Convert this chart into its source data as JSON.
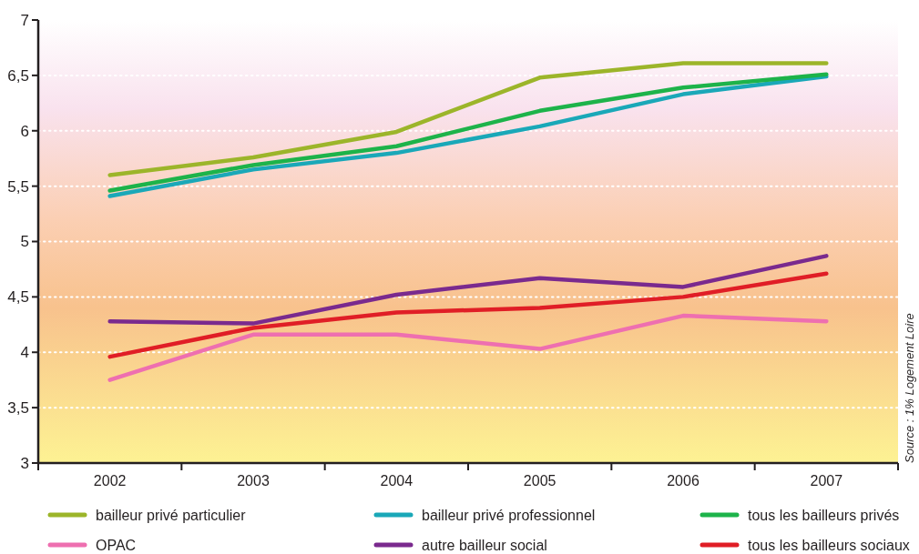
{
  "chart_data": {
    "type": "line",
    "categories": [
      "2002",
      "2003",
      "2004",
      "2005",
      "2006",
      "2007"
    ],
    "series": [
      {
        "name": "bailleur privé particulier",
        "color": "#9cb52a",
        "values": [
          5.6,
          5.76,
          5.99,
          6.48,
          6.61,
          6.61
        ]
      },
      {
        "name": "bailleur privé professionnel",
        "color": "#1aa8b8",
        "values": [
          5.41,
          5.65,
          5.8,
          6.04,
          6.33,
          6.49
        ]
      },
      {
        "name": "tous les bailleurs privés",
        "color": "#1db34a",
        "values": [
          5.46,
          5.69,
          5.86,
          6.18,
          6.39,
          6.51
        ]
      },
      {
        "name": "OPAC",
        "color": "#ee6fb0",
        "values": [
          3.75,
          4.16,
          4.16,
          4.03,
          4.33,
          4.28
        ]
      },
      {
        "name": "autre bailleur social",
        "color": "#7a2a8e",
        "values": [
          4.28,
          4.26,
          4.52,
          4.67,
          4.59,
          4.87
        ]
      },
      {
        "name": "tous les bailleurs sociaux",
        "color": "#e01e26",
        "values": [
          3.96,
          4.22,
          4.36,
          4.4,
          4.5,
          4.71
        ]
      }
    ],
    "ylim": [
      3,
      7
    ],
    "yticks": [
      3,
      {
        "value": 3.5,
        "label": "3,5"
      },
      4,
      {
        "value": 4.5,
        "label": "4,5"
      },
      5,
      {
        "value": 5.5,
        "label": "5,5"
      },
      6,
      {
        "value": 6.5,
        "label": "6,5"
      },
      7
    ],
    "grid": "y",
    "legend": "bottom",
    "line_style": "solid",
    "annotations": [
      "Source : 1% Logement Loire"
    ]
  }
}
